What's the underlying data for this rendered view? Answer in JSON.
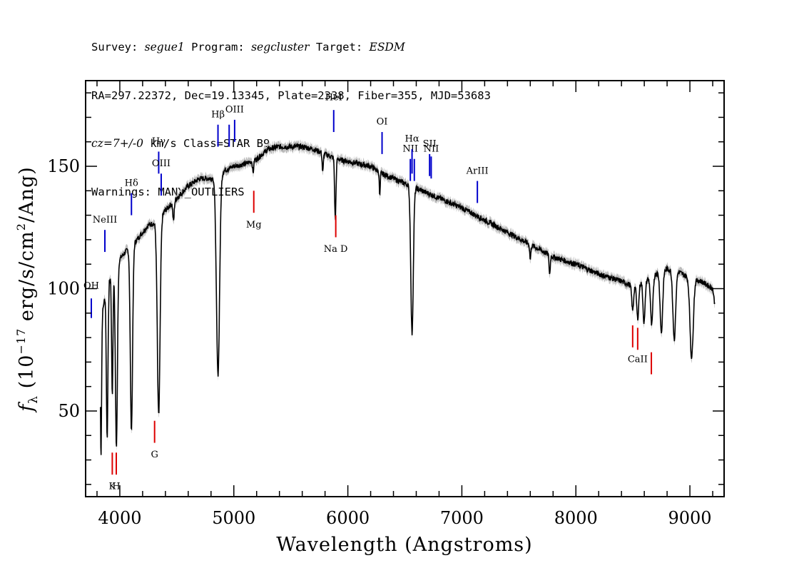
{
  "header": {
    "survey_label": "Survey: ",
    "survey": "segue1",
    "program_label": " Program: ",
    "program": "segcluster",
    "target_label": " Target: ",
    "target": "ESDM",
    "line2": "RA=297.22372, Dec=19.13345, Plate=2338, Fiber=355, MJD=53683",
    "line3_italic": "cz=7+/-0",
    "line3_rest": " km/s Class=STAR B9",
    "line4": "Warnings: MANY_OUTLIERS"
  },
  "chart_data": {
    "type": "line",
    "xlabel": "Wavelength (Angstroms)",
    "ylabel": "f_λ (10^-17 erg/s/cm^2/Ang)",
    "xlim": [
      3700,
      9300
    ],
    "ylim": [
      15,
      185
    ],
    "x_ticks": [
      4000,
      5000,
      6000,
      7000,
      8000,
      9000
    ],
    "y_ticks": [
      50,
      100,
      150
    ],
    "x_tick_labels": [
      "4000",
      "5000",
      "6000",
      "7000",
      "8000",
      "9000"
    ],
    "y_tick_labels": [
      "50",
      "100",
      "150"
    ],
    "grid": false,
    "colors": {
      "spectrum": "#000000",
      "error_band": "#bbbbbb",
      "emission": "#0000cc",
      "absorption": "#dd0000"
    },
    "continuum": [
      [
        3830,
        85
      ],
      [
        3880,
        100
      ],
      [
        3960,
        110
      ],
      [
        4050,
        115
      ],
      [
        4150,
        120
      ],
      [
        4250,
        126
      ],
      [
        4320,
        127
      ],
      [
        4400,
        132
      ],
      [
        4500,
        137
      ],
      [
        4600,
        142
      ],
      [
        4700,
        145
      ],
      [
        4800,
        145
      ],
      [
        4830,
        146
      ],
      [
        4900,
        148
      ],
      [
        5000,
        150
      ],
      [
        5100,
        151
      ],
      [
        5200,
        153
      ],
      [
        5300,
        157
      ],
      [
        5400,
        158
      ],
      [
        5500,
        158
      ],
      [
        5600,
        158
      ],
      [
        5700,
        157
      ],
      [
        5800,
        155
      ],
      [
        5900,
        153
      ],
      [
        6000,
        152
      ],
      [
        6100,
        151
      ],
      [
        6200,
        150
      ],
      [
        6300,
        147
      ],
      [
        6400,
        145
      ],
      [
        6500,
        143
      ],
      [
        6600,
        141
      ],
      [
        6700,
        139
      ],
      [
        6800,
        137
      ],
      [
        6900,
        135
      ],
      [
        7000,
        133
      ],
      [
        7200,
        128
      ],
      [
        7400,
        123
      ],
      [
        7600,
        118
      ],
      [
        7800,
        113
      ],
      [
        8000,
        110
      ],
      [
        8200,
        106
      ],
      [
        8400,
        103
      ],
      [
        8500,
        101
      ],
      [
        8600,
        103
      ],
      [
        8700,
        106
      ],
      [
        8800,
        108
      ],
      [
        8900,
        107
      ],
      [
        9000,
        104
      ],
      [
        9100,
        103
      ],
      [
        9200,
        100
      ],
      [
        9220,
        93
      ]
    ],
    "absorption_features": [
      {
        "x": 3835,
        "depth": 55,
        "width": 5
      },
      {
        "x": 3889,
        "depth": 62,
        "width": 7
      },
      {
        "x": 3934,
        "depth": 50,
        "width": 6
      },
      {
        "x": 3970,
        "depth": 75,
        "width": 9
      },
      {
        "x": 4102,
        "depth": 75,
        "width": 10
      },
      {
        "x": 4341,
        "depth": 80,
        "width": 12
      },
      {
        "x": 4471,
        "depth": 8,
        "width": 6
      },
      {
        "x": 4861,
        "depth": 82,
        "width": 14
      },
      {
        "x": 5169,
        "depth": 5,
        "width": 5
      },
      {
        "x": 5780,
        "depth": 8,
        "width": 5
      },
      {
        "x": 5890,
        "depth": 25,
        "width": 6
      },
      {
        "x": 6280,
        "depth": 10,
        "width": 4
      },
      {
        "x": 6563,
        "depth": 60,
        "width": 11
      },
      {
        "x": 7600,
        "depth": 6,
        "width": 5
      },
      {
        "x": 7770,
        "depth": 8,
        "width": 5
      },
      {
        "x": 8498,
        "depth": 10,
        "width": 8
      },
      {
        "x": 8542,
        "depth": 14,
        "width": 9
      },
      {
        "x": 8598,
        "depth": 17,
        "width": 9
      },
      {
        "x": 8665,
        "depth": 20,
        "width": 10
      },
      {
        "x": 8750,
        "depth": 25,
        "width": 11
      },
      {
        "x": 8863,
        "depth": 28,
        "width": 12
      },
      {
        "x": 9015,
        "depth": 32,
        "width": 14
      }
    ],
    "blue_markers": [
      {
        "x": 3750,
        "label": "OH",
        "y_bottom": 88,
        "y_top": 96,
        "label_y": 100
      },
      {
        "x": 3869,
        "label": "NeIII",
        "y_bottom": 115,
        "y_top": 124,
        "label_y": 127
      },
      {
        "x": 4102,
        "label": "Hδ",
        "y_bottom": 130,
        "y_top": 139,
        "label_y": 142
      },
      {
        "x": 4341,
        "label": "Hγ",
        "y_bottom": 147,
        "y_top": 156,
        "label_y": 159
      },
      {
        "x": 4363,
        "label": "OIII",
        "y_bottom": 138,
        "y_top": 147,
        "label_y": 150
      },
      {
        "x": 4861,
        "label": "Hβ",
        "y_bottom": 158,
        "y_top": 167,
        "label_y": 170
      },
      {
        "x": 4959,
        "label": "",
        "y_bottom": 158,
        "y_top": 167,
        "label_y": 0
      },
      {
        "x": 5007,
        "label": "OIII",
        "y_bottom": 160,
        "y_top": 169,
        "label_y": 172
      },
      {
        "x": 5876,
        "label": "HeI",
        "y_bottom": 164,
        "y_top": 173,
        "label_y": 177
      },
      {
        "x": 6300,
        "label": "OI",
        "y_bottom": 155,
        "y_top": 164,
        "label_y": 167
      },
      {
        "x": 6548,
        "label": "NII",
        "y_bottom": 144,
        "y_top": 153,
        "label_y": 156
      },
      {
        "x": 6563,
        "label": "Hα",
        "y_bottom": 147,
        "y_top": 157,
        "label_y": 160
      },
      {
        "x": 6583,
        "label": "",
        "y_bottom": 144,
        "y_top": 153,
        "label_y": 0
      },
      {
        "x": 6717,
        "label": "SII",
        "y_bottom": 146,
        "y_top": 155,
        "label_y": 158
      },
      {
        "x": 6731,
        "label": "NII",
        "y_bottom": 145,
        "y_top": 154,
        "label_y": 156
      },
      {
        "x": 7136,
        "label": "ArIII",
        "y_bottom": 135,
        "y_top": 144,
        "label_y": 147
      }
    ],
    "red_markers": [
      {
        "x": 3934,
        "label": "K",
        "y_bottom": 24,
        "y_top": 33,
        "label_y": 18
      },
      {
        "x": 3969,
        "label": "H",
        "y_bottom": 24,
        "y_top": 33,
        "label_y": 18
      },
      {
        "x": 4305,
        "label": "G",
        "y_bottom": 37,
        "y_top": 46,
        "label_y": 31
      },
      {
        "x": 5175,
        "label": "Mg",
        "y_bottom": 131,
        "y_top": 140,
        "label_y": 125
      },
      {
        "x": 5894,
        "label": "Na D",
        "y_bottom": 121,
        "y_top": 130,
        "label_y": 115
      },
      {
        "x": 8498,
        "label": "",
        "y_bottom": 76,
        "y_top": 85,
        "label_y": 0
      },
      {
        "x": 8542,
        "label": "CaII",
        "y_bottom": 75,
        "y_top": 84,
        "label_y": 70
      },
      {
        "x": 8662,
        "label": "",
        "y_bottom": 65,
        "y_top": 74,
        "label_y": 0
      }
    ]
  }
}
